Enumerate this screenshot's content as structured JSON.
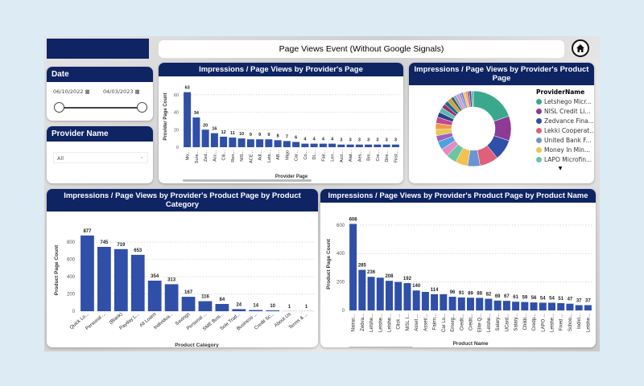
{
  "header": {
    "title": "Page Views Event (Without Google Signals)",
    "home_icon": "home-icon"
  },
  "date_slicer": {
    "title": "Date",
    "start": "06/10/2022",
    "end": "04/03/2023",
    "range": [
      0,
      1
    ]
  },
  "provider_slicer": {
    "title": "Provider Name",
    "value": "All"
  },
  "colors": {
    "bar": "#2f4fa8",
    "header": "#0f2463"
  },
  "chart_data": [
    {
      "type": "bar",
      "title": "Impressions / Page Views by Provider's Page",
      "xlabel": "Provider Page",
      "ylabel": "Provider Page Count",
      "ylim": [
        0,
        70
      ],
      "yticks": [
        0,
        20,
        40,
        60
      ],
      "grid": true,
      "categories": [
        "Mo...",
        "Sure...",
        "Zed...",
        "Acc...",
        "Citi...",
        "Ren...",
        "NIS...",
        "ACE...",
        "Adl...",
        "Lets...",
        "AB...",
        "Migo",
        "Car...",
        "Co...",
        "DL...",
        "Fair...",
        "Len...",
        "Acci...",
        "Alat...",
        "Aes...",
        "Bm...",
        "Cre...",
        "Dire...",
        "First..."
      ],
      "values": [
        63,
        34,
        20,
        16,
        12,
        11,
        10,
        9,
        9,
        9,
        8,
        7,
        6,
        4,
        4,
        4,
        4,
        3,
        3,
        3,
        3,
        3,
        3,
        3
      ]
    },
    {
      "type": "pie",
      "title": "Impressions / Page Views by Provider's Product Page",
      "legend_title": "ProviderName",
      "legend_position": "right",
      "legend": [
        {
          "name": "Letshego Micr...",
          "color": "#3aa88c"
        },
        {
          "name": "NISL Credit Li...",
          "color": "#8e3a96"
        },
        {
          "name": "Zedvance Fina...",
          "color": "#2f4fa8"
        },
        {
          "name": "Lekki Cooperat...",
          "color": "#e0607a"
        },
        {
          "name": "United Bank F...",
          "color": "#6b93d6"
        },
        {
          "name": "Money In Min...",
          "color": "#f2c14e"
        },
        {
          "name": "LAPO Microfin...",
          "color": "#6cc4a0"
        }
      ]
    },
    {
      "type": "bar",
      "title": "Impressions / Page Views by Provider's Product Page by Product Category",
      "xlabel": "Product Category",
      "ylabel": "Product Page Count",
      "ylim": [
        0,
        950
      ],
      "yticks": [
        0,
        200,
        400,
        600,
        800
      ],
      "grid": true,
      "categories": [
        "Quick Lo...",
        "Personal ...",
        "(Blank)",
        "Payday L...",
        "All Loans",
        "Individua...",
        "Savings",
        "Personal ...",
        "SME Busi...",
        "Sole Trad...",
        "Business ...",
        "Credit Sc...",
        "About Us",
        "Terms & ..."
      ],
      "values": [
        877,
        745,
        719,
        653,
        354,
        313,
        167,
        116,
        84,
        24,
        14,
        10,
        1,
        1
      ]
    },
    {
      "type": "bar",
      "title": "Impressions / Page Views by Provider's Product Page by Product Name",
      "xlabel": "Product Name",
      "ylabel": "Product Page Count",
      "ylim": [
        0,
        650
      ],
      "yticks": [
        0,
        200,
        400,
        600
      ],
      "grid": true,
      "categories": [
        "Nairac...",
        "Zedva...",
        "Letshe...",
        "Letshe...",
        "Letshe...",
        "Click ...",
        "NISL I...",
        "Asset ...",
        "Asset/...",
        "Fairm...",
        "Car Lo...",
        "Emerg...",
        "Credit...",
        "Credit...",
        "Elite Q...",
        "Letshe...",
        "Salary...",
        "UCard...",
        "Salary...",
        "Childr...",
        "Credp...",
        "LAPO ...",
        "Letshe...",
        "Fixed ...",
        "Schoo...",
        "Indivi...",
        "Letshe..."
      ],
      "values": [
        608,
        285,
        236,
        230,
        208,
        200,
        192,
        140,
        130,
        114,
        114,
        96,
        91,
        89,
        88,
        82,
        69,
        67,
        61,
        59,
        56,
        54,
        54,
        51,
        47,
        37,
        37
      ],
      "labels": [
        "608",
        "285",
        "236",
        "",
        "208",
        "",
        "192",
        "140",
        "",
        "114",
        "",
        "96",
        "91",
        "89",
        "88",
        "82",
        "69",
        "67",
        "61",
        "59",
        "56",
        "54",
        "54",
        "51",
        "47",
        "37",
        "37"
      ]
    }
  ]
}
